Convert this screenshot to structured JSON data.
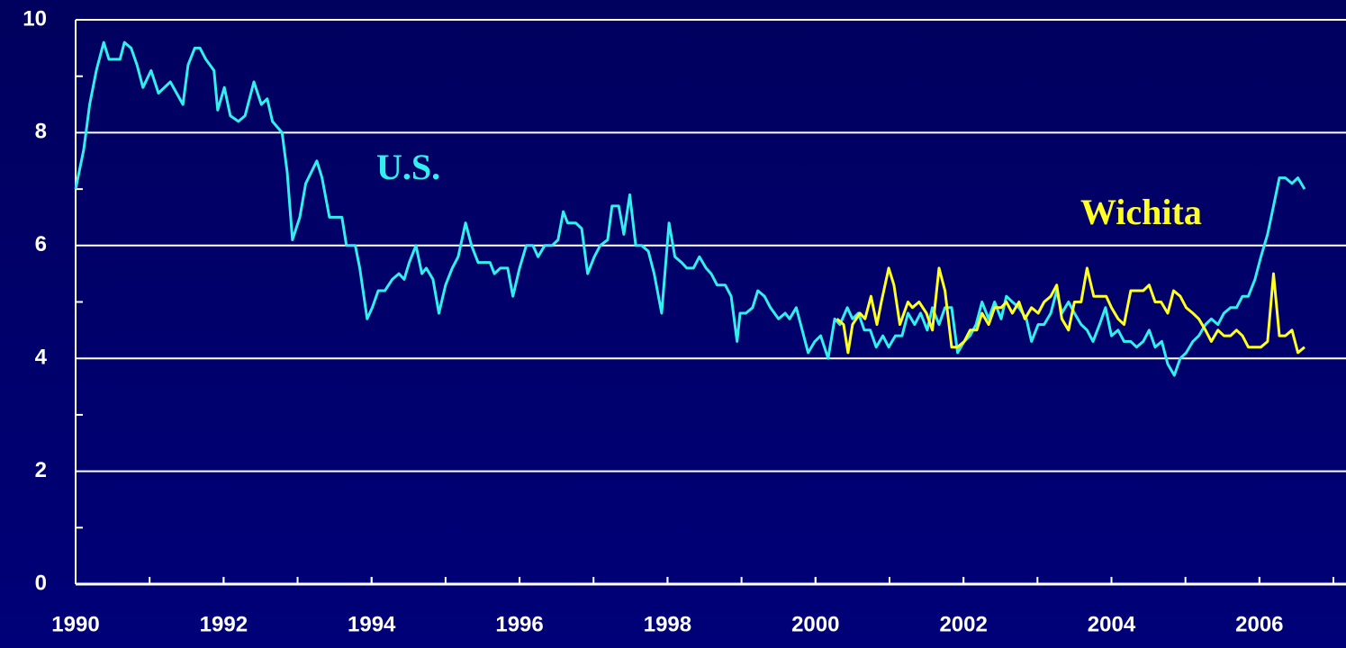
{
  "chart_data": {
    "type": "line",
    "xlim": [
      1990,
      2007.17
    ],
    "ylim": [
      0,
      10
    ],
    "xticks": [
      1990,
      1992,
      1994,
      1996,
      1998,
      2000,
      2002,
      2004,
      2006
    ],
    "yticks": [
      0,
      2,
      4,
      6,
      8,
      10
    ],
    "xminor": [
      1991,
      1992,
      1993,
      1994,
      1995,
      1996,
      1997,
      1998,
      1999,
      2000,
      2001,
      2002,
      2003,
      2004,
      2005,
      2006,
      2007
    ],
    "yminor": [
      1,
      3,
      5,
      7,
      9
    ],
    "grid": true,
    "series": [
      {
        "name": "U.S.",
        "color": "#33eeee",
        "x": [
          1990.0,
          1990.11,
          1990.19,
          1990.28,
          1990.38,
          1990.45,
          1990.6,
          1990.66,
          1990.75,
          1990.83,
          1990.91,
          1991.02,
          1991.12,
          1991.28,
          1991.45,
          1991.52,
          1991.61,
          1991.68,
          1991.76,
          1991.87,
          1991.92,
          1992.01,
          1992.09,
          1992.2,
          1992.29,
          1992.41,
          1992.51,
          1992.59,
          1992.66,
          1992.79,
          1992.86,
          1992.93,
          1993.03,
          1993.11,
          1993.26,
          1993.33,
          1993.43,
          1993.6,
          1993.66,
          1993.78,
          1993.84,
          1993.94,
          1994.01,
          1994.09,
          1994.18,
          1994.28,
          1994.37,
          1994.44,
          1994.51,
          1994.6,
          1994.68,
          1994.74,
          1994.83,
          1994.91,
          1995.0,
          1995.09,
          1995.17,
          1995.27,
          1995.35,
          1995.44,
          1995.6,
          1995.66,
          1995.74,
          1995.84,
          1995.91,
          1996.0,
          1996.09,
          1996.18,
          1996.25,
          1996.34,
          1996.44,
          1996.52,
          1996.59,
          1996.65,
          1996.76,
          1996.84,
          1996.92,
          1997.01,
          1997.09,
          1997.19,
          1997.25,
          1997.34,
          1997.41,
          1997.49,
          1997.57,
          1997.65,
          1997.74,
          1997.82,
          1997.92,
          1998.02,
          1998.1,
          1998.19,
          1998.26,
          1998.35,
          1998.43,
          1998.52,
          1998.59,
          1998.67,
          1998.78,
          1998.86,
          1998.94,
          1998.98,
          1999.06,
          1999.15,
          1999.22,
          1999.31,
          1999.39,
          1999.5,
          1999.59,
          1999.65,
          1999.74,
          1999.82,
          1999.9,
          1999.99,
          2000.07,
          2000.17,
          2000.26,
          2000.33,
          2000.43,
          2000.5,
          2000.58,
          2000.66,
          2000.74,
          2000.82,
          2000.91,
          2000.99,
          2001.08,
          2001.17,
          2001.25,
          2001.34,
          2001.42,
          2001.51,
          2001.58,
          2001.67,
          2001.75,
          2001.84,
          2001.92,
          2002.01,
          2002.09,
          2002.17,
          2002.25,
          2002.34,
          2002.42,
          2002.51,
          2002.58,
          2002.66,
          2002.75,
          2002.85,
          2002.92,
          2003.01,
          2003.09,
          2003.18,
          2003.26,
          2003.33,
          2003.42,
          2003.5,
          2003.59,
          2003.67,
          2003.75,
          2003.84,
          2003.92,
          2004.0,
          2004.09,
          2004.17,
          2004.26,
          2004.34,
          2004.43,
          2004.51,
          2004.59,
          2004.68,
          2004.76,
          2004.85,
          2004.93,
          2005.01,
          2005.1,
          2005.18,
          2005.27,
          2005.35,
          2005.44,
          2005.52,
          2005.61,
          2005.69,
          2005.77,
          2005.85,
          2005.94,
          2006.02,
          2006.11,
          2006.19,
          2006.27,
          2006.35,
          2006.44,
          2006.52,
          2006.61
        ],
        "values": [
          7.0,
          7.7,
          8.5,
          9.1,
          9.6,
          9.3,
          9.3,
          9.6,
          9.5,
          9.2,
          8.8,
          9.1,
          8.7,
          8.9,
          8.5,
          9.2,
          9.5,
          9.5,
          9.3,
          9.1,
          8.4,
          8.8,
          8.3,
          8.2,
          8.3,
          8.9,
          8.5,
          8.6,
          8.2,
          8.0,
          7.3,
          6.1,
          6.5,
          7.1,
          7.5,
          7.2,
          6.5,
          6.5,
          6.0,
          6.0,
          5.6,
          4.7,
          4.9,
          5.2,
          5.2,
          5.4,
          5.5,
          5.4,
          5.7,
          6.0,
          5.5,
          5.6,
          5.4,
          4.8,
          5.3,
          5.6,
          5.8,
          6.4,
          6.0,
          5.7,
          5.7,
          5.5,
          5.6,
          5.6,
          5.1,
          5.6,
          6.0,
          6.0,
          5.8,
          6.0,
          6.0,
          6.1,
          6.6,
          6.4,
          6.4,
          6.3,
          5.5,
          5.8,
          6.0,
          6.1,
          6.7,
          6.7,
          6.2,
          6.9,
          6.0,
          6.0,
          5.9,
          5.5,
          4.8,
          6.4,
          5.8,
          5.7,
          5.6,
          5.6,
          5.8,
          5.6,
          5.5,
          5.3,
          5.3,
          5.1,
          4.3,
          4.8,
          4.8,
          4.9,
          5.2,
          5.1,
          4.9,
          4.7,
          4.8,
          4.7,
          4.9,
          4.5,
          4.1,
          4.3,
          4.4,
          4.0,
          4.7,
          4.6,
          4.9,
          4.7,
          4.8,
          4.5,
          4.5,
          4.2,
          4.4,
          4.2,
          4.4,
          4.4,
          4.8,
          4.6,
          4.8,
          4.5,
          4.9,
          4.6,
          4.9,
          4.9,
          4.1,
          4.3,
          4.4,
          4.6,
          5.0,
          4.7,
          5.0,
          4.7,
          5.1,
          5.0,
          4.9,
          4.7,
          4.3,
          4.6,
          4.6,
          4.8,
          5.2,
          4.8,
          5.0,
          4.8,
          4.6,
          4.5,
          4.3,
          4.6,
          4.9,
          4.4,
          4.5,
          4.3,
          4.3,
          4.2,
          4.3,
          4.5,
          4.2,
          4.3,
          3.9,
          3.7,
          4.0,
          4.1,
          4.3,
          4.4,
          4.6,
          4.7,
          4.6,
          4.8,
          4.9,
          4.9,
          5.1,
          5.1,
          5.4,
          5.8,
          6.2,
          6.7,
          7.2,
          7.2,
          7.1,
          7.2,
          7.0
        ]
      },
      {
        "name": "Wichita",
        "color": "#ffff22",
        "x": [
          2000.29,
          2000.38,
          2000.44,
          2000.5,
          2000.6,
          2000.67,
          2000.75,
          2000.83,
          2000.89,
          2000.99,
          2001.06,
          2001.14,
          2001.25,
          2001.31,
          2001.4,
          2001.5,
          2001.58,
          2001.67,
          2001.75,
          2001.84,
          2001.92,
          2002.01,
          2002.09,
          2002.18,
          2002.25,
          2002.34,
          2002.42,
          2002.51,
          2002.58,
          2002.66,
          2002.75,
          2002.83,
          2002.92,
          2003.01,
          2003.09,
          2003.18,
          2003.26,
          2003.33,
          2003.42,
          2003.5,
          2003.59,
          2003.67,
          2003.76,
          2003.84,
          2003.93,
          2004.0,
          2004.09,
          2004.17,
          2004.26,
          2004.34,
          2004.43,
          2004.51,
          2004.59,
          2004.67,
          2004.76,
          2004.84,
          2004.93,
          2005.01,
          2005.1,
          2005.18,
          2005.27,
          2005.35,
          2005.44,
          2005.52,
          2005.61,
          2005.69,
          2005.77,
          2005.85,
          2005.94,
          2006.02,
          2006.11,
          2006.19,
          2006.27,
          2006.35,
          2006.44,
          2006.52,
          2006.61
        ],
        "values": [
          4.7,
          4.6,
          4.1,
          4.6,
          4.8,
          4.7,
          5.1,
          4.6,
          5.0,
          5.6,
          5.3,
          4.6,
          5.0,
          4.9,
          5.0,
          4.8,
          4.5,
          5.6,
          5.2,
          4.2,
          4.2,
          4.3,
          4.5,
          4.5,
          4.8,
          4.6,
          4.9,
          4.9,
          5.0,
          4.8,
          5.0,
          4.7,
          4.9,
          4.8,
          5.0,
          5.1,
          5.3,
          4.7,
          4.5,
          5.0,
          5.0,
          5.6,
          5.1,
          5.1,
          5.1,
          4.9,
          4.7,
          4.6,
          5.2,
          5.2,
          5.2,
          5.3,
          5.0,
          5.0,
          4.8,
          5.2,
          5.1,
          4.9,
          4.8,
          4.7,
          4.5,
          4.3,
          4.5,
          4.4,
          4.4,
          4.5,
          4.4,
          4.2,
          4.2,
          4.2,
          4.3,
          5.5,
          4.4,
          4.4,
          4.5,
          4.1,
          4.2
        ]
      }
    ]
  }
}
